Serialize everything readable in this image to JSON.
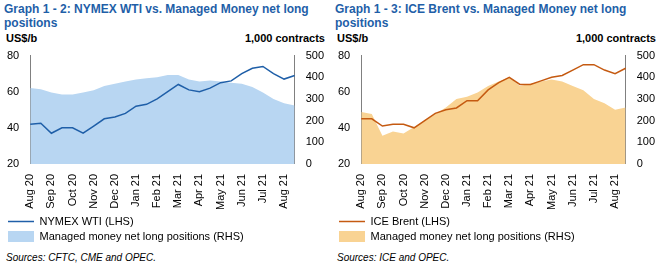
{
  "chart_data": [
    {
      "type": "line",
      "title": "Graph 1 - 2: NYMEX WTI vs. Managed Money net long positions",
      "ylabel": "US$/b",
      "y2label": "1,000 contracts",
      "source": "Sources: CFTC, CME and OPEC.",
      "categories": [
        "Aug 20",
        null,
        "Sep 20",
        null,
        "Oct 20",
        null,
        "Nov 20",
        null,
        "Dec 20",
        null,
        "Jan 21",
        null,
        "Feb 21",
        null,
        "Mar 21",
        null,
        "Apr 21",
        null,
        "May 21",
        null,
        "Jun 21",
        null,
        "Jul 21",
        null,
        "Aug 21",
        null
      ],
      "series": [
        {
          "name": "Managed money net long positions (RHS)",
          "type": "area",
          "axis": "y2",
          "color": "#b8d6f2",
          "values": [
            350,
            345,
            330,
            320,
            320,
            330,
            340,
            360,
            370,
            380,
            390,
            395,
            400,
            410,
            410,
            390,
            380,
            385,
            380,
            375,
            370,
            355,
            330,
            300,
            280,
            270
          ]
        },
        {
          "name": "NYMEX WTI (LHS)",
          "type": "line",
          "color": "#1f5fa8",
          "values": [
            42,
            42.5,
            37,
            40,
            40,
            37,
            41,
            45,
            46,
            48,
            52,
            53,
            56,
            60,
            64,
            61,
            60,
            62,
            65,
            66,
            70,
            73,
            74,
            70,
            67,
            69
          ]
        }
      ],
      "ylim": [
        20,
        80
      ],
      "yticks": [
        20,
        40,
        60,
        80
      ],
      "y2lim": [
        0,
        500
      ],
      "y2ticks": [
        0,
        100,
        200,
        300,
        400,
        500
      ],
      "grid": false,
      "legend": "bottom"
    },
    {
      "type": "line",
      "title": "Graph 1 - 3: ICE Brent vs. Managed Money net long positions",
      "ylabel": "US$/b",
      "y2label": "1,000 contracts",
      "source": "Sources: ICE and OPEC.",
      "categories": [
        "Aug 20",
        null,
        "Sep 20",
        null,
        "Oct 20",
        null,
        "Nov 20",
        null,
        "Dec 20",
        null,
        "Jan 21",
        null,
        "Feb 21",
        null,
        "Mar 21",
        null,
        "Apr 21",
        null,
        "May 21",
        null,
        "Jun 21",
        null,
        "Jul 21",
        null,
        "Aug 21",
        null
      ],
      "series": [
        {
          "name": "Managed money net long positions (RHS)",
          "type": "area",
          "axis": "y2",
          "color": "#f9d393",
          "values": [
            240,
            230,
            130,
            150,
            140,
            170,
            200,
            230,
            260,
            300,
            310,
            330,
            360,
            380,
            400,
            360,
            370,
            380,
            390,
            380,
            360,
            340,
            300,
            280,
            250,
            260
          ]
        },
        {
          "name": "ICE Brent (LHS)",
          "type": "line",
          "color": "#c55a11",
          "values": [
            45,
            45,
            41,
            42,
            42,
            40,
            44,
            48,
            50,
            51,
            55,
            55,
            61,
            65,
            68,
            64,
            64,
            66,
            68,
            69,
            72,
            75,
            75,
            72,
            70,
            73
          ]
        }
      ],
      "ylim": [
        20,
        80
      ],
      "yticks": [
        20,
        40,
        60,
        80
      ],
      "y2lim": [
        0,
        500
      ],
      "y2ticks": [
        0,
        100,
        200,
        300,
        400,
        500
      ],
      "grid": false,
      "legend": "bottom"
    }
  ]
}
